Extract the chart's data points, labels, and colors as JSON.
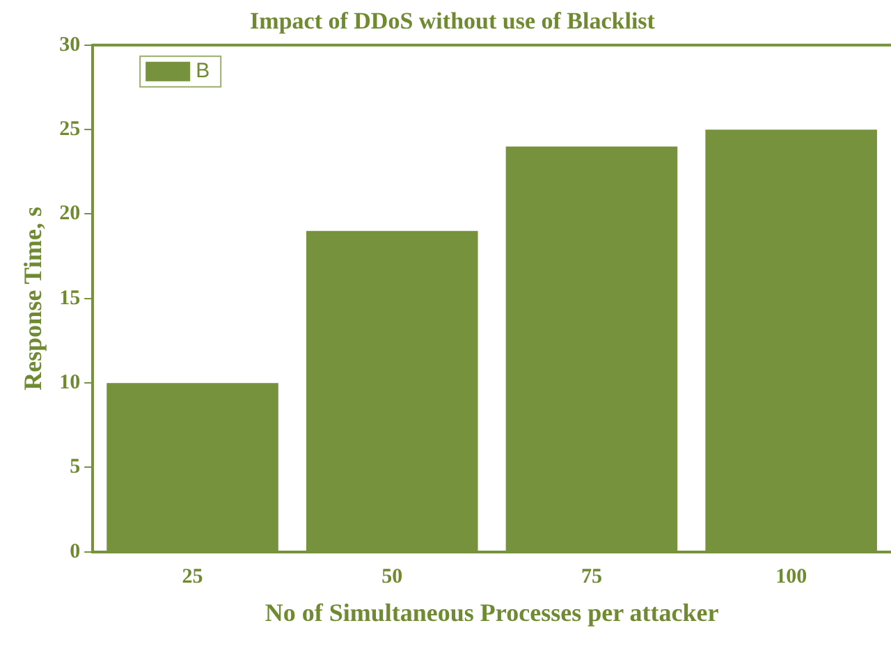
{
  "chart_data": {
    "type": "bar",
    "title": "Impact of DDoS without use of Blacklist",
    "xlabel": "No of Simultaneous Processes per attacker",
    "ylabel": "Response Time, s",
    "categories": [
      "25",
      "50",
      "75",
      "100"
    ],
    "series": [
      {
        "name": "B",
        "color": "#76923c",
        "values": [
          10,
          19,
          24,
          25
        ]
      }
    ],
    "ylim": [
      0,
      30
    ],
    "yticks": [
      0,
      5,
      10,
      15,
      20,
      25,
      30
    ],
    "grid": false,
    "legend": "top left"
  }
}
